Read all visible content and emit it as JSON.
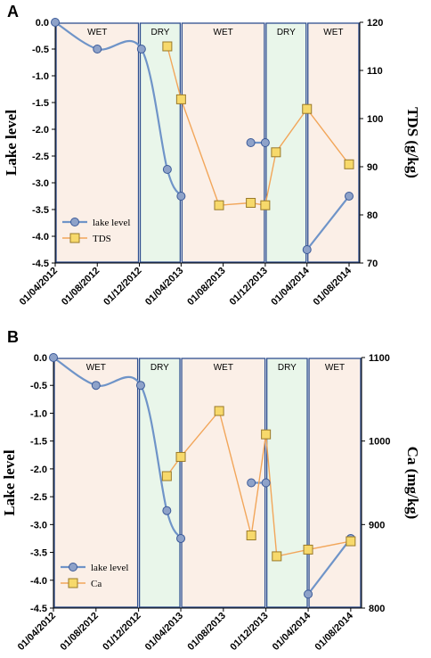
{
  "chart_data": [
    {
      "panel_label": "A",
      "type": "line",
      "xlabel_ticks": [
        "01/04/2012",
        "01/08/2012",
        "01/12/2012",
        "01/04/2013",
        "01/08/2013",
        "01/12/2013",
        "01/04/2014",
        "01/08/2014"
      ],
      "ylabel": "Lake level",
      "y2label": "TDS (g/kg)",
      "ylim": [
        -4.5,
        0.0
      ],
      "y_ticks": [
        "0.0",
        "-0.5",
        "-1.0",
        "-1.5",
        "-2.0",
        "-2.5",
        "-3.0",
        "-3.5",
        "-4.0",
        "-4.5"
      ],
      "y2lim": [
        70,
        120
      ],
      "y2_ticks": [
        "70",
        "80",
        "90",
        "100",
        "110",
        "120"
      ],
      "seasons": [
        {
          "label": "WET",
          "start": "2012-04-01",
          "end": "2012-12-01"
        },
        {
          "label": "DRY",
          "start": "2012-12-01",
          "end": "2013-04-01"
        },
        {
          "label": "WET",
          "start": "2013-04-01",
          "end": "2013-12-01"
        },
        {
          "label": "DRY",
          "start": "2013-12-01",
          "end": "2014-04-01"
        },
        {
          "label": "WET",
          "start": "2014-04-01",
          "end": "2014-09-01"
        }
      ],
      "legend": {
        "position": "bottom-left",
        "entries": [
          "lake level",
          "TDS"
        ]
      },
      "series": [
        {
          "name": "lake level",
          "axis": "left",
          "color": "#6f94c8",
          "marker": "circle",
          "segments": [
            [
              [
                "2012-04-01",
                0.0
              ],
              [
                "2012-08-01",
                -0.5
              ],
              [
                "2012-12-07",
                -0.5
              ],
              [
                "2013-02-20",
                -2.75
              ],
              [
                "2013-04-01",
                -3.25
              ]
            ],
            [
              [
                "2013-10-20",
                -2.25
              ],
              [
                "2013-12-01",
                -2.25
              ]
            ],
            [
              [
                "2014-04-01",
                -4.25
              ],
              [
                "2014-08-01",
                -3.25
              ]
            ]
          ]
        },
        {
          "name": "TDS",
          "axis": "right",
          "color": "#f2a65a",
          "marker": "square",
          "points": [
            [
              "2013-02-20",
              115
            ],
            [
              "2013-04-01",
              104
            ],
            [
              "2013-07-20",
              82
            ],
            [
              "2013-10-20",
              82.5
            ],
            [
              "2013-12-01",
              82
            ],
            [
              "2014-01-01",
              93
            ],
            [
              "2014-04-01",
              102
            ],
            [
              "2014-08-01",
              90.5
            ]
          ]
        }
      ]
    },
    {
      "panel_label": "B",
      "type": "line",
      "xlabel_ticks": [
        "01/04/2012",
        "01/08/2012",
        "01/12/2012",
        "01/04/2013",
        "01/08/2013",
        "01/12/2013",
        "01/04/2014",
        "01/08/2014"
      ],
      "ylabel": "Lake level",
      "y2label": "Ca (mg/kg)",
      "ylim": [
        -4.5,
        0.0
      ],
      "y_ticks": [
        "0.0",
        "-0.5",
        "-1.0",
        "-1.5",
        "-2.0",
        "-2.5",
        "-3.0",
        "-3.5",
        "-4.0",
        "-4.5"
      ],
      "y2lim": [
        800,
        1100
      ],
      "y2_ticks": [
        "800",
        "900",
        "1000",
        "1100"
      ],
      "seasons": [
        {
          "label": "WET",
          "start": "2012-04-01",
          "end": "2012-12-01"
        },
        {
          "label": "DRY",
          "start": "2012-12-01",
          "end": "2013-04-01"
        },
        {
          "label": "WET",
          "start": "2013-04-01",
          "end": "2013-12-01"
        },
        {
          "label": "DRY",
          "start": "2013-12-01",
          "end": "2014-04-01"
        },
        {
          "label": "WET",
          "start": "2014-04-01",
          "end": "2014-09-01"
        }
      ],
      "legend": {
        "position": "bottom-left",
        "entries": [
          "lake level",
          "Ca"
        ]
      },
      "series": [
        {
          "name": "lake level",
          "axis": "left",
          "color": "#6f94c8",
          "marker": "circle",
          "segments": [
            [
              [
                "2012-04-01",
                0.0
              ],
              [
                "2012-08-01",
                -0.5
              ],
              [
                "2012-12-07",
                -0.5
              ],
              [
                "2013-02-20",
                -2.75
              ],
              [
                "2013-04-01",
                -3.25
              ]
            ],
            [
              [
                "2013-10-20",
                -2.25
              ],
              [
                "2013-12-01",
                -2.25
              ]
            ],
            [
              [
                "2014-04-01",
                -4.25
              ],
              [
                "2014-08-01",
                -3.25
              ]
            ]
          ]
        },
        {
          "name": "Ca",
          "axis": "right",
          "color": "#f2a65a",
          "marker": "square",
          "points": [
            [
              "2013-02-20",
              958
            ],
            [
              "2013-04-01",
              981
            ],
            [
              "2013-07-20",
              1036
            ],
            [
              "2013-10-20",
              887
            ],
            [
              "2013-12-01",
              1008
            ],
            [
              "2014-01-01",
              862
            ],
            [
              "2014-04-01",
              870
            ],
            [
              "2014-08-01",
              880
            ]
          ]
        }
      ]
    }
  ]
}
